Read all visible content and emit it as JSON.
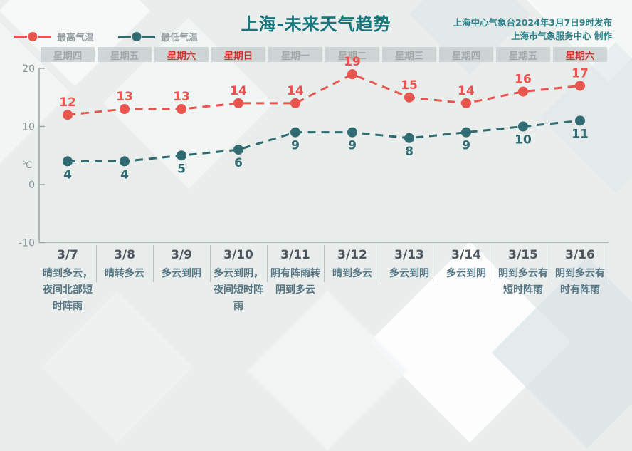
{
  "header": {
    "title": "上海-未来天气趋势",
    "meta_line1": "上海中心气象台2024年3月7日9时发布",
    "meta_line2": "上海市气象服务中心 制作"
  },
  "legend": {
    "high_label": "最高气温",
    "low_label": "最低气温"
  },
  "colors": {
    "high": "#e8544e",
    "low": "#2f6b70",
    "title_teal": "#16767c",
    "weekend_red": "#c53a36",
    "weekday_gray": "#a3a9a9",
    "axis": "#9aa4a4",
    "tick_label": "#8b9596"
  },
  "chart_data": {
    "type": "line",
    "title": "上海-未来天气趋势",
    "ylabel": "℃",
    "ylim": [
      -10,
      20
    ],
    "yticks": [
      20,
      10,
      0,
      -10
    ],
    "grid": false,
    "legend_position": "top-left",
    "line_style": "dashed",
    "categories": [
      "3/7",
      "3/8",
      "3/9",
      "3/10",
      "3/11",
      "3/12",
      "3/13",
      "3/14",
      "3/15",
      "3/16"
    ],
    "weekdays": [
      "星期四",
      "星期五",
      "星期六",
      "星期日",
      "星期一",
      "星期二",
      "星期三",
      "星期四",
      "星期五",
      "星期六"
    ],
    "weekend_indices": [
      2,
      3,
      9
    ],
    "series": [
      {
        "name": "最高气温",
        "color": "#e8544e",
        "values": [
          12,
          13,
          13,
          14,
          14,
          19,
          15,
          14,
          16,
          17
        ],
        "label_position": "above"
      },
      {
        "name": "最低气温",
        "color": "#2f6b70",
        "values": [
          4,
          4,
          5,
          6,
          9,
          9,
          8,
          9,
          10,
          11
        ],
        "label_position": "below"
      }
    ]
  },
  "forecast_table": {
    "dates": [
      "3/7",
      "3/8",
      "3/9",
      "3/10",
      "3/11",
      "3/12",
      "3/13",
      "3/14",
      "3/15",
      "3/16"
    ],
    "conditions": [
      "晴到多云，夜间北部短时阵雨",
      "晴转多云",
      "多云到阴",
      "多云到阴，夜间短时阵雨",
      "阴有阵雨转阴到多云",
      "晴到多云",
      "多云到阴",
      "多云到阴",
      "阴到多云有短时阵雨",
      "阴到多云有时有阵雨"
    ]
  }
}
